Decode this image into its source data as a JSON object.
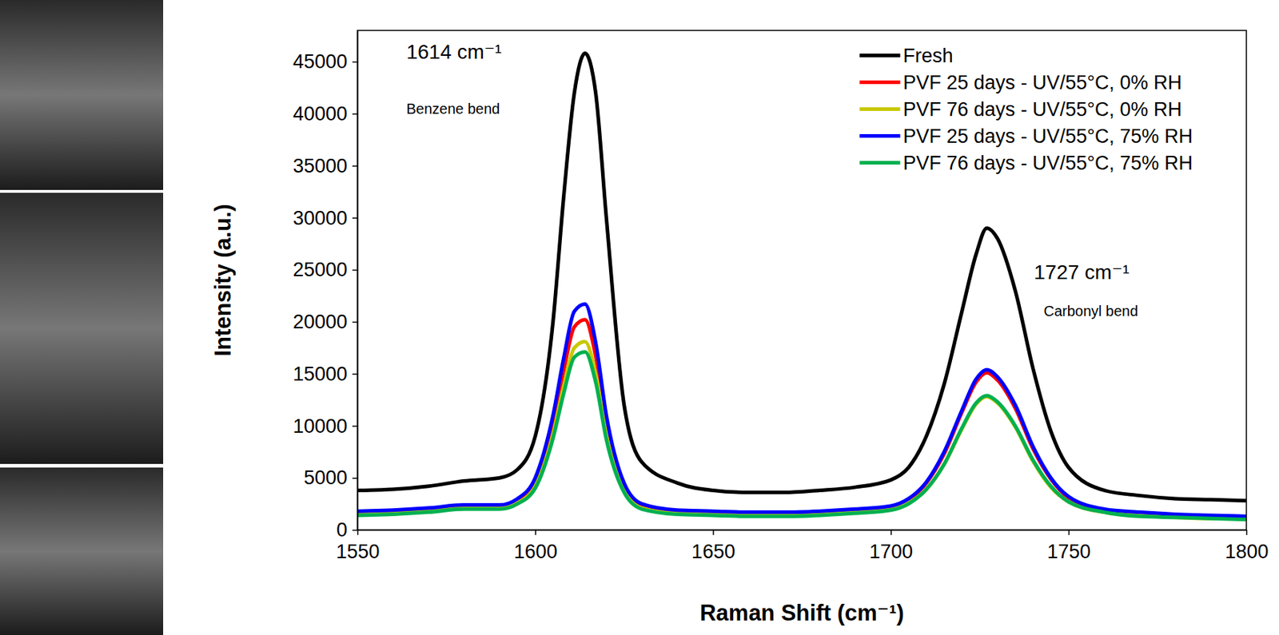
{
  "chart_data": {
    "type": "line",
    "x_label": "Raman Shift (cm⁻¹)",
    "y_label": "Intensity (a.u.)",
    "annotations": [
      "1614 cm⁻¹",
      "Benzene bend",
      "1727 cm⁻¹",
      "Carbonyl bend"
    ],
    "x": [
      1550,
      1560,
      1570,
      1580,
      1590,
      1595,
      1600,
      1605,
      1608,
      1611,
      1614,
      1617,
      1620,
      1625,
      1630,
      1640,
      1650,
      1660,
      1670,
      1680,
      1690,
      1700,
      1705,
      1710,
      1715,
      1720,
      1724,
      1727,
      1730,
      1735,
      1740,
      1745,
      1750,
      1760,
      1770,
      1780,
      1790,
      1800
    ],
    "series": [
      {
        "name": "Fresh",
        "color": "#000000",
        "values": [
          3800,
          3900,
          4200,
          4700,
          5000,
          5800,
          9000,
          20000,
          32000,
          42000,
          45800,
          42000,
          30000,
          12000,
          6500,
          4500,
          3800,
          3600,
          3600,
          3800,
          4100,
          4800,
          6000,
          9000,
          14000,
          21000,
          26500,
          29000,
          28000,
          23000,
          15500,
          9500,
          6000,
          3800,
          3300,
          3000,
          2900,
          2800
        ]
      },
      {
        "name": "PVF 25 days - UV/55°C, 0% RH",
        "color": "#ff0000",
        "values": [
          1700,
          1800,
          2000,
          2300,
          2300,
          2900,
          4700,
          10200,
          15300,
          19500,
          20200,
          16700,
          10200,
          4200,
          2400,
          1800,
          1700,
          1600,
          1600,
          1700,
          1900,
          2200,
          2900,
          4500,
          7300,
          11300,
          14200,
          15100,
          14400,
          11700,
          7800,
          4900,
          3100,
          1900,
          1600,
          1400,
          1300,
          1200
        ]
      },
      {
        "name": "PVF 76 days - UV/55°C, 0% RH",
        "color": "#c8c800",
        "values": [
          1500,
          1600,
          1800,
          2100,
          2100,
          2600,
          4200,
          9200,
          13800,
          17500,
          18100,
          15000,
          9200,
          3800,
          2100,
          1600,
          1500,
          1400,
          1400,
          1500,
          1700,
          2000,
          2600,
          3900,
          6300,
          9700,
          12100,
          12800,
          12200,
          9900,
          6600,
          4100,
          2700,
          1700,
          1400,
          1200,
          1100,
          1100
        ]
      },
      {
        "name": "PVF 25 days - UV/55°C, 75% RH",
        "color": "#0000ff",
        "values": [
          1800,
          1900,
          2100,
          2400,
          2400,
          3000,
          5000,
          11000,
          16500,
          21000,
          21700,
          18000,
          11000,
          4500,
          2500,
          1900,
          1800,
          1700,
          1700,
          1800,
          2000,
          2300,
          3000,
          4600,
          7500,
          11500,
          14500,
          15400,
          14700,
          12000,
          8000,
          5000,
          3200,
          2000,
          1700,
          1500,
          1400,
          1300
        ]
      },
      {
        "name": "PVF 76 days - UV/55°C, 75% RH",
        "color": "#00b050",
        "values": [
          1400,
          1500,
          1700,
          2000,
          2000,
          2500,
          4000,
          8800,
          13100,
          16600,
          17100,
          14200,
          8700,
          3600,
          2000,
          1500,
          1400,
          1300,
          1300,
          1400,
          1600,
          1900,
          2500,
          3900,
          6300,
          9800,
          12200,
          12900,
          12300,
          10000,
          6700,
          4200,
          2700,
          1700,
          1300,
          1200,
          1100,
          1000
        ]
      }
    ],
    "xlim": [
      1550,
      1800
    ],
    "xticks": [
      1550,
      1600,
      1650,
      1700,
      1750,
      1800
    ],
    "ylim": [
      0,
      48000
    ],
    "yticks": [
      0,
      5000,
      10000,
      15000,
      20000,
      25000,
      30000,
      35000,
      40000,
      45000
    ],
    "grid": false,
    "legend": "top-right"
  }
}
